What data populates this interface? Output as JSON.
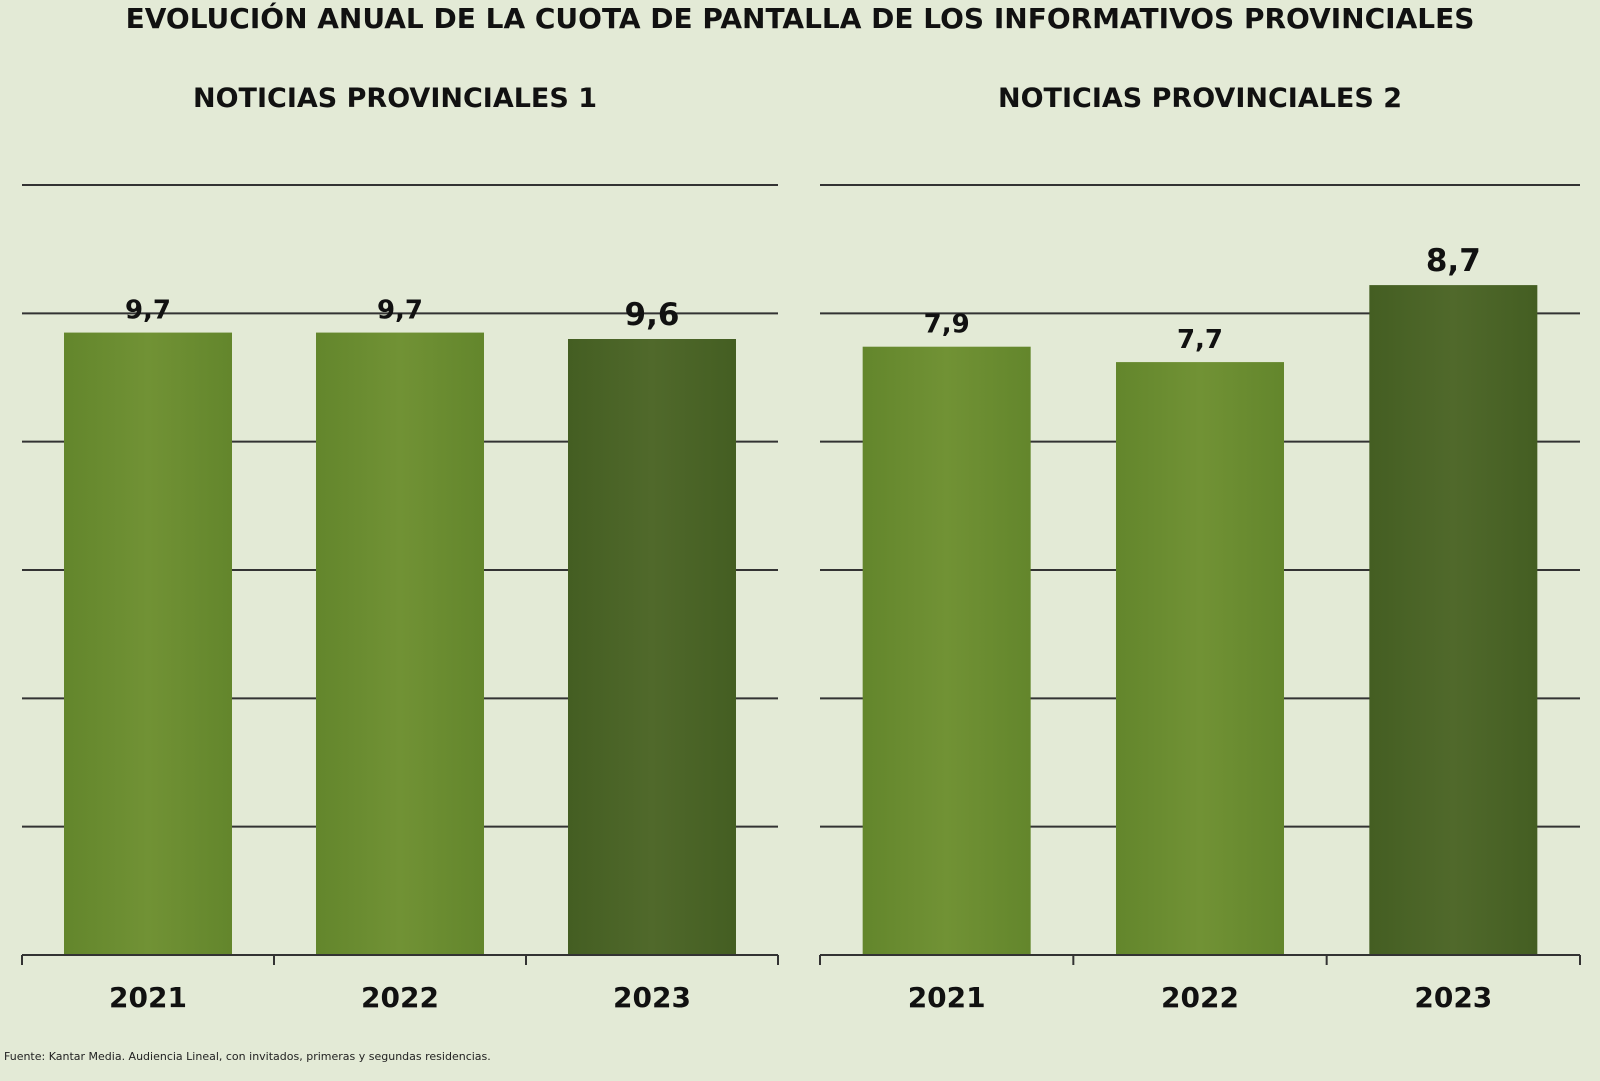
{
  "title": "EVOLUCIÓN ANUAL DE LA CUOTA DE PANTALLA DE LOS INFORMATIVOS PROVINCIALES",
  "source": "Fuente: Kantar Media. Audiencia Lineal, con invitados, primeras y segundas residencias.",
  "colors": {
    "background": "#e3ead6",
    "bar": "#6a8f30",
    "bar_highlight": "#4a6427",
    "gridline": "#333333"
  },
  "chart_data": [
    {
      "type": "bar",
      "title": "NOTICIAS PROVINCIALES 1",
      "categories": [
        "2021",
        "2022",
        "2023"
      ],
      "values": [
        9.7,
        9.7,
        9.6
      ],
      "value_labels": [
        "9,7",
        "9,7",
        "9,6"
      ],
      "highlight_index": 2,
      "ylim": [
        0,
        12
      ],
      "grid": true,
      "xlabel": "",
      "ylabel": ""
    },
    {
      "type": "bar",
      "title": "NOTICIAS PROVINCIALES 2",
      "categories": [
        "2021",
        "2022",
        "2023"
      ],
      "values": [
        7.9,
        7.7,
        8.7
      ],
      "value_labels": [
        "7,9",
        "7,7",
        "8,7"
      ],
      "highlight_index": 2,
      "ylim": [
        0,
        10
      ],
      "grid": true,
      "xlabel": "",
      "ylabel": ""
    }
  ]
}
